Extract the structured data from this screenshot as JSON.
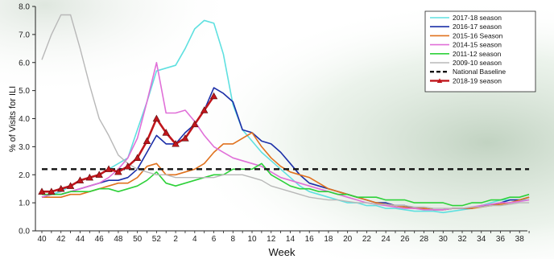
{
  "chart_data": {
    "type": "line",
    "title": "",
    "xlabel": "Week",
    "ylabel": "% of Visits for ILI",
    "ylim": [
      0,
      8
    ],
    "y_ticks": [
      "0.0",
      "1.0",
      "2.0",
      "3.0",
      "4.0",
      "5.0",
      "6.0",
      "7.0",
      "8.0"
    ],
    "x_tick_labels": [
      "40",
      "42",
      "44",
      "46",
      "48",
      "50",
      "52",
      "2",
      "4",
      "6",
      "8",
      "10",
      "12",
      "14",
      "16",
      "18",
      "20",
      "22",
      "24",
      "26",
      "28",
      "30",
      "32",
      "34",
      "36",
      "38"
    ],
    "week_order": [
      40,
      41,
      42,
      43,
      44,
      45,
      46,
      47,
      48,
      49,
      50,
      51,
      52,
      1,
      2,
      3,
      4,
      5,
      6,
      7,
      8,
      9,
      10,
      11,
      12,
      13,
      14,
      15,
      16,
      17,
      18,
      19,
      20,
      21,
      22,
      23,
      24,
      25,
      26,
      27,
      28,
      29,
      30,
      31,
      32,
      33,
      34,
      35,
      36,
      37,
      38,
      39
    ],
    "grid": false,
    "legend_position": "top-right",
    "series": [
      {
        "name": "2017-18 season",
        "color": "#5fe0e0",
        "width": 1.6,
        "marker": "none",
        "values": [
          1.2,
          1.3,
          1.4,
          1.6,
          1.8,
          1.9,
          2.0,
          2.2,
          2.4,
          2.6,
          3.6,
          4.6,
          5.7,
          5.8,
          5.9,
          6.5,
          7.2,
          7.5,
          7.4,
          6.3,
          4.5,
          3.6,
          3.2,
          2.8,
          2.5,
          2.2,
          1.9,
          1.6,
          1.4,
          1.3,
          1.2,
          1.1,
          1.0,
          1.0,
          0.9,
          0.9,
          0.8,
          0.8,
          0.75,
          0.7,
          0.7,
          0.7,
          0.65,
          0.7,
          0.75,
          0.8,
          0.9,
          1.0,
          1.1,
          1.1,
          1.1,
          1.1
        ]
      },
      {
        "name": "2016-17 season",
        "color": "#1c2fa8",
        "width": 1.6,
        "marker": "none",
        "values": [
          1.2,
          1.3,
          1.3,
          1.4,
          1.5,
          1.6,
          1.7,
          1.8,
          1.8,
          1.9,
          2.2,
          2.8,
          3.4,
          3.1,
          3.1,
          3.5,
          3.8,
          4.3,
          5.1,
          4.9,
          4.6,
          3.6,
          3.5,
          3.2,
          3.1,
          2.8,
          2.4,
          2.0,
          1.7,
          1.6,
          1.5,
          1.4,
          1.3,
          1.2,
          1.1,
          1.0,
          1.0,
          0.9,
          0.9,
          0.8,
          0.8,
          0.75,
          0.75,
          0.8,
          0.8,
          0.8,
          0.9,
          0.9,
          1.0,
          1.1,
          1.1,
          1.2
        ]
      },
      {
        "name": "2015-16 Season",
        "color": "#e0721e",
        "width": 1.6,
        "marker": "none",
        "values": [
          1.2,
          1.2,
          1.2,
          1.3,
          1.3,
          1.4,
          1.5,
          1.6,
          1.7,
          1.7,
          1.9,
          2.3,
          2.4,
          2.0,
          2.0,
          2.1,
          2.2,
          2.4,
          2.8,
          3.1,
          3.1,
          3.3,
          3.5,
          3.0,
          2.6,
          2.3,
          2.1,
          2.0,
          1.9,
          1.7,
          1.5,
          1.4,
          1.3,
          1.2,
          1.1,
          1.0,
          0.95,
          0.9,
          0.85,
          0.8,
          0.8,
          0.75,
          0.75,
          0.8,
          0.8,
          0.8,
          0.85,
          0.9,
          0.95,
          1.0,
          1.1,
          1.2
        ]
      },
      {
        "name": "2014-15 season",
        "color": "#e070d8",
        "width": 1.6,
        "marker": "none",
        "values": [
          1.2,
          1.3,
          1.3,
          1.4,
          1.5,
          1.6,
          1.7,
          1.9,
          2.2,
          2.6,
          3.3,
          4.6,
          6.0,
          4.2,
          4.2,
          4.3,
          3.9,
          3.4,
          3.0,
          2.8,
          2.6,
          2.5,
          2.4,
          2.3,
          2.1,
          1.9,
          1.8,
          1.7,
          1.6,
          1.5,
          1.4,
          1.3,
          1.2,
          1.1,
          1.0,
          0.95,
          0.9,
          0.85,
          0.8,
          0.8,
          0.75,
          0.75,
          0.75,
          0.8,
          0.8,
          0.85,
          0.9,
          0.95,
          1.0,
          1.0,
          1.05,
          1.1
        ]
      },
      {
        "name": "2011-12 season",
        "color": "#2ed13a",
        "width": 1.6,
        "marker": "none",
        "values": [
          1.3,
          1.3,
          1.3,
          1.4,
          1.4,
          1.4,
          1.5,
          1.5,
          1.4,
          1.5,
          1.6,
          1.8,
          2.1,
          1.7,
          1.6,
          1.7,
          1.8,
          1.9,
          2.0,
          2.0,
          2.2,
          2.2,
          2.2,
          2.4,
          2.0,
          1.8,
          1.6,
          1.5,
          1.5,
          1.4,
          1.4,
          1.3,
          1.3,
          1.2,
          1.2,
          1.2,
          1.1,
          1.1,
          1.1,
          1.0,
          1.0,
          1.0,
          1.0,
          0.9,
          0.9,
          1.0,
          1.0,
          1.1,
          1.1,
          1.2,
          1.2,
          1.3
        ]
      },
      {
        "name": "2009-10 season",
        "color": "#b8b8b8",
        "width": 1.4,
        "marker": "none",
        "values": [
          6.1,
          7.0,
          7.7,
          7.7,
          6.5,
          5.2,
          4.0,
          3.4,
          2.7,
          2.4,
          2.2,
          2.1,
          2.0,
          2.0,
          1.9,
          1.9,
          1.9,
          1.9,
          1.9,
          2.0,
          2.0,
          2.0,
          1.9,
          1.8,
          1.6,
          1.5,
          1.4,
          1.3,
          1.2,
          1.15,
          1.1,
          1.1,
          1.05,
          1.0,
          1.0,
          0.95,
          0.95,
          0.9,
          0.9,
          0.85,
          0.85,
          0.8,
          0.8,
          0.8,
          0.8,
          0.85,
          0.85,
          0.9,
          0.9,
          0.95,
          1.0,
          1.0
        ]
      },
      {
        "name": "National Baseline",
        "color": "#111111",
        "width": 2.4,
        "dashed": true,
        "marker": "none",
        "constant": 2.2
      },
      {
        "name": "2018-19 season",
        "color": "#c0161c",
        "width": 2.6,
        "marker": "triangle",
        "values": [
          1.4,
          1.4,
          1.5,
          1.6,
          1.8,
          1.9,
          2.0,
          2.2,
          2.1,
          2.3,
          2.6,
          3.2,
          4.0,
          3.5,
          3.1,
          3.3,
          3.8,
          4.3,
          4.8
        ]
      }
    ]
  }
}
